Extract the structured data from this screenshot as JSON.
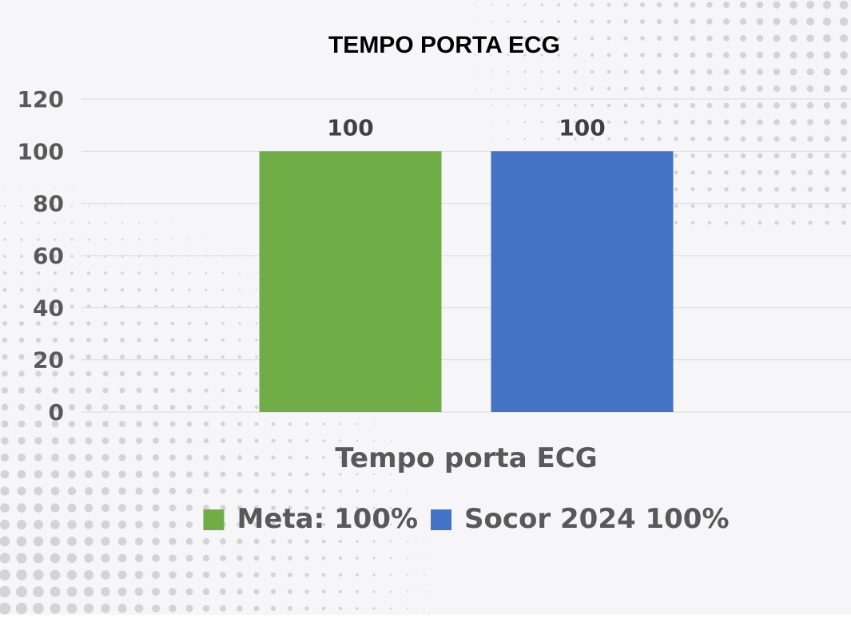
{
  "chart_data": {
    "type": "bar",
    "title": "TEMPO PORTA ECG",
    "categories": [
      "Tempo porta ECG"
    ],
    "series": [
      {
        "name": "Meta: 100%",
        "values": [
          100
        ],
        "color": "#70ad47"
      },
      {
        "name": "Socor 2024 100%",
        "values": [
          100
        ],
        "color": "#4472c4"
      }
    ],
    "ylim": [
      0,
      120
    ],
    "yticks": [
      0,
      20,
      40,
      60,
      80,
      100,
      120
    ],
    "grid": true,
    "legend": "bottom",
    "data_labels": true
  }
}
